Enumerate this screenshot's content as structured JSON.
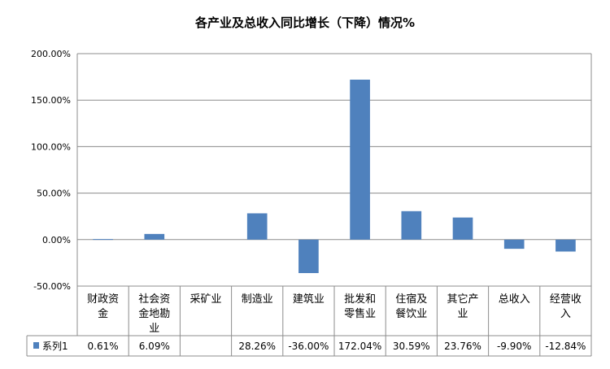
{
  "chart_data": {
    "type": "bar",
    "title": "各产业及总收入同比增长（下降）情况%",
    "categories": [
      [
        "财政资",
        "金"
      ],
      [
        "社会资",
        "金地勘",
        "业"
      ],
      [
        "采矿业"
      ],
      [
        "制造业"
      ],
      [
        "建筑业"
      ],
      [
        "批发和",
        "零售业"
      ],
      [
        "住宿及",
        "餐饮业"
      ],
      [
        "其它产",
        "业"
      ],
      [
        "总收入"
      ],
      [
        "经营收",
        "入"
      ]
    ],
    "series": [
      {
        "name": "系列1",
        "color": "#4F81BD",
        "values": [
          0.61,
          6.09,
          null,
          28.26,
          -36.0,
          172.04,
          30.59,
          23.76,
          -9.9,
          -12.84
        ],
        "labels": [
          "0.61%",
          "6.09%",
          "",
          "28.26%",
          "-36.00%",
          "172.04%",
          "30.59%",
          "23.76%",
          "-9.90%",
          "-12.84%"
        ]
      }
    ],
    "yaxis": {
      "min": -50,
      "max": 200,
      "ticks": [
        "200.00%",
        "150.00%",
        "100.00%",
        "50.00%",
        "0.00%",
        "-50.00%"
      ]
    },
    "grid": true,
    "data_table": true
  }
}
